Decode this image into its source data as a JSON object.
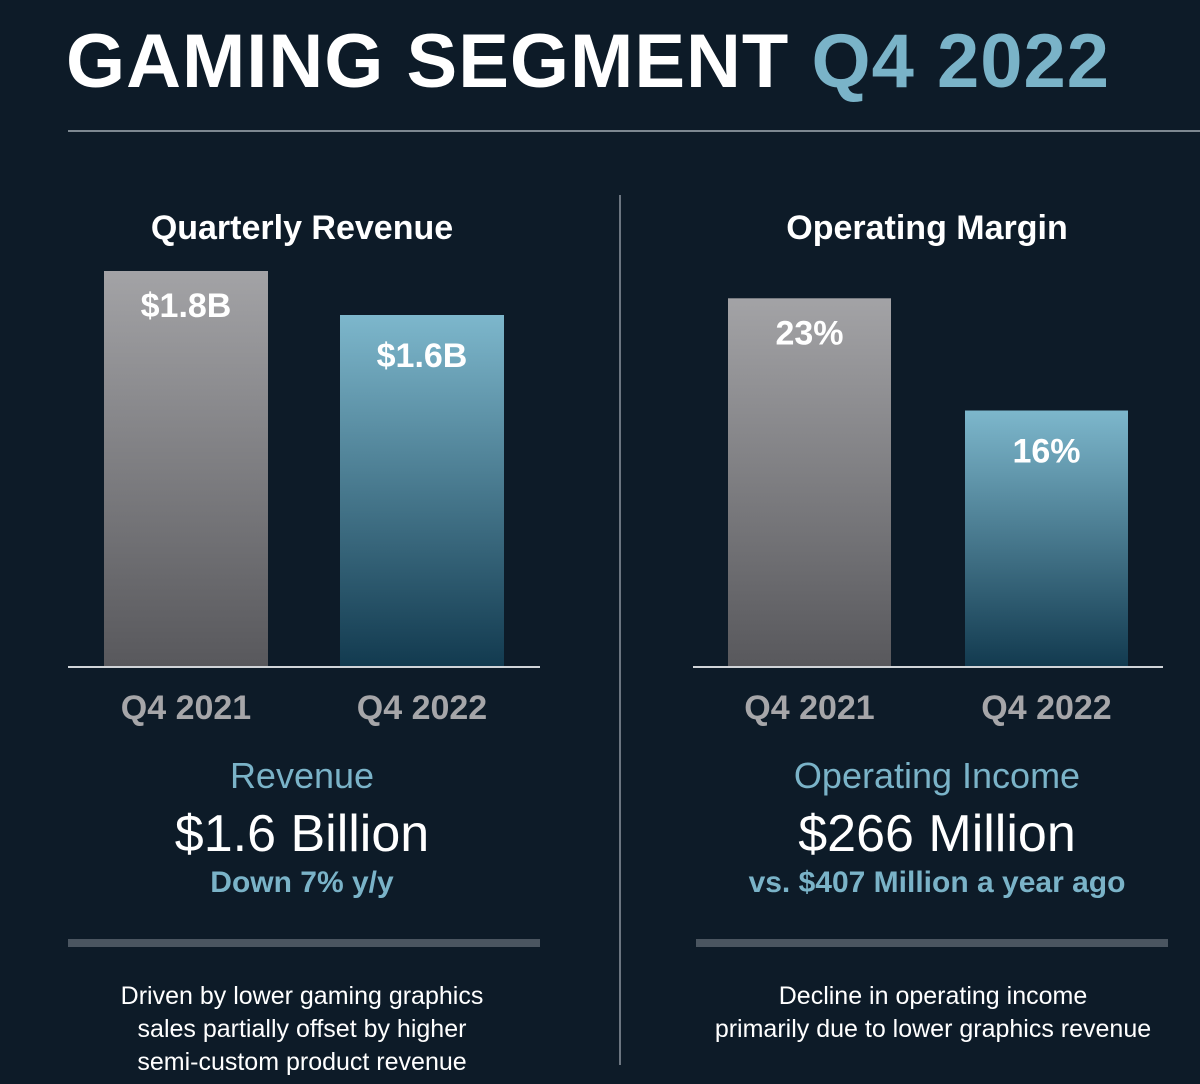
{
  "title": {
    "main": "GAMING SEGMENT",
    "accent": "Q4 2022"
  },
  "colors": {
    "background": "#0d1b28",
    "accent": "#7ab3c8",
    "gray_bar": "#9a9a9d",
    "blue_bar": "#7ab3c8"
  },
  "chart_data": [
    {
      "type": "bar",
      "title": "Quarterly Revenue",
      "categories": [
        "Q4 2021",
        "Q4 2022"
      ],
      "values": [
        1.8,
        1.6
      ],
      "data_labels": [
        "$1.8B",
        "$1.6B"
      ],
      "unit": "$B",
      "ylim": [
        0,
        2.0
      ]
    },
    {
      "type": "bar",
      "title": "Operating Margin",
      "categories": [
        "Q4 2021",
        "Q4 2022"
      ],
      "values": [
        23,
        16
      ],
      "data_labels": [
        "23%",
        "16%"
      ],
      "unit": "%",
      "ylim": [
        0,
        33
      ]
    }
  ],
  "left_summary": {
    "label": "Revenue",
    "value": "$1.6 Billion",
    "sub": "Down 7% y/y",
    "note": [
      "Driven by lower gaming graphics",
      "sales partially offset by higher",
      "semi-custom product revenue"
    ]
  },
  "right_summary": {
    "label": "Operating Income",
    "value": "$266 Million",
    "sub": "vs. $407 Million a year ago",
    "note": [
      "Decline in operating income",
      "primarily due to lower graphics revenue"
    ]
  }
}
